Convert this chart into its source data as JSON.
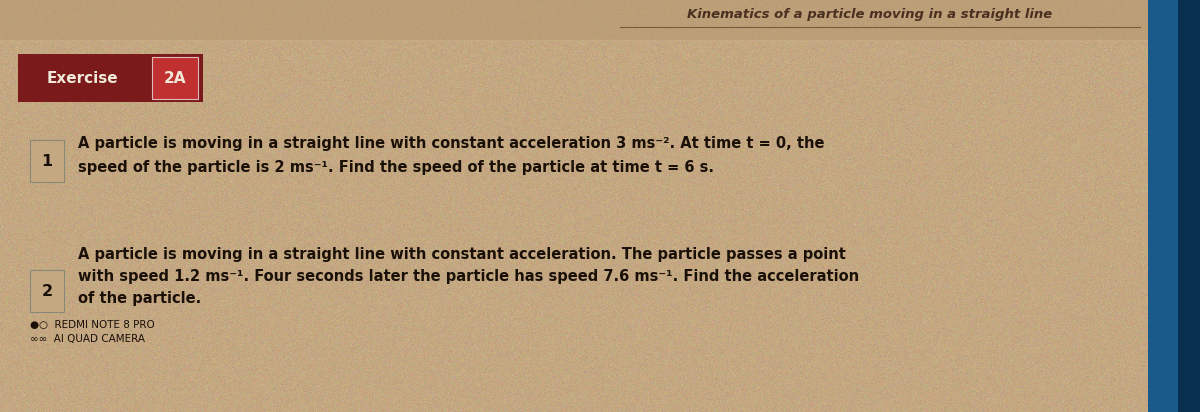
{
  "background_color": "#b8956a",
  "page_bg_color": "#c4a882",
  "header_text": "Kinematics of a particle moving in a straight line",
  "header_color": "#4a3020",
  "header_line_color": "#7a5a3a",
  "exercise_label": "Exercise",
  "exercise_box_text": "2A",
  "exercise_label_bg": "#7a1a1a",
  "exercise_label_color": "#f0e8d8",
  "exercise_box_bg": "#6a1010",
  "q1_number": "1",
  "q1_text_line1": "A particle is moving in a straight line with constant acceleration 3 ms⁻². At time t = 0, the",
  "q1_text_line2": "speed of the particle is 2 ms⁻¹. Find the speed of the particle at time t = 6 s.",
  "q2_number": "2",
  "q2_text_line1": "A particle is moving in a straight line with constant acceleration. The particle passes a point",
  "q2_text_line2": "with speed 1.2 ms⁻¹. Four seconds later the particle has speed 7.6 ms⁻¹. Find the acceleration",
  "q2_text_line3": "of the particle.",
  "watermark_line1": "●○  REDMI NOTE 8 PRO",
  "watermark_line2": "∞∞  AI QUAD CAMERA",
  "text_color": "#1a1008",
  "number_box_border": "#888878",
  "right_panel_color": "#1a5a8a",
  "right_panel_dark": "#0a3050",
  "top_bar_color": "#b8956a",
  "font_size_header": 9.5,
  "font_size_exercise": 11,
  "font_size_body": 10.5,
  "font_size_watermark": 7.5
}
